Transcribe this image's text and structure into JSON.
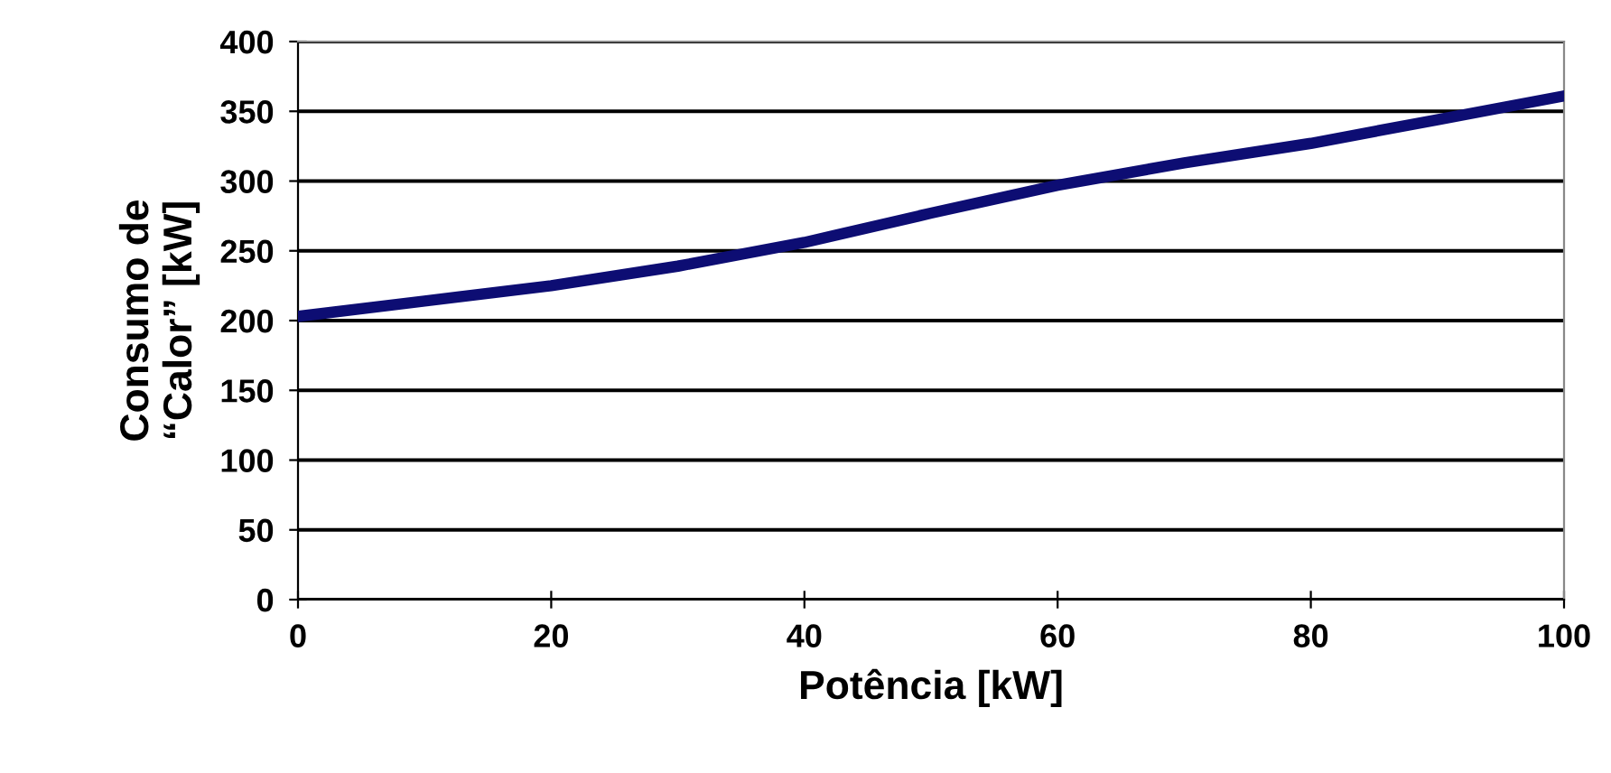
{
  "chart_data": {
    "type": "line",
    "xlabel": "Potência [kW]",
    "ylabel": "Consumo de\n“Calor” [kW]",
    "x": [
      0,
      10,
      20,
      30,
      40,
      50,
      60,
      70,
      80,
      90,
      100
    ],
    "series": [
      {
        "color": "#0d0d73",
        "values": [
          203,
          214,
          225,
          239,
          256,
          277,
          297,
          313,
          327,
          344,
          361
        ]
      }
    ],
    "xlim": [
      0,
      100
    ],
    "xticks": [
      0,
      20,
      40,
      60,
      80,
      100
    ],
    "ylim": [
      0,
      400
    ],
    "yticks": [
      0,
      50,
      100,
      150,
      200,
      250,
      300,
      350,
      400
    ],
    "grid": "y",
    "legend": false,
    "marker": "none",
    "line_style": "solid"
  }
}
